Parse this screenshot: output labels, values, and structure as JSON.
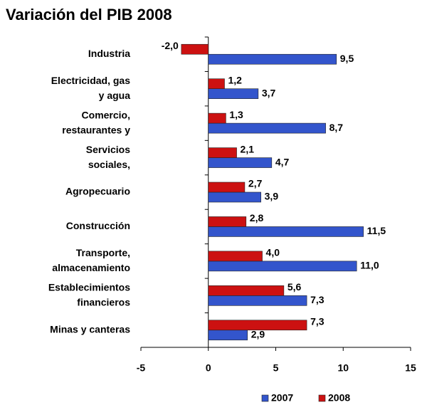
{
  "chart_data": {
    "type": "hbar",
    "title": "Variación del PIB 2008",
    "categories": [
      [
        "Industria"
      ],
      [
        "Electricidad, gas",
        "y agua"
      ],
      [
        "Comercio,",
        "restaurantes y"
      ],
      [
        "Servicios",
        "sociales,"
      ],
      [
        "Agropecuario"
      ],
      [
        "Construcción"
      ],
      [
        "Transporte,",
        "almacenamiento"
      ],
      [
        "Establecimientos",
        "financieros"
      ],
      [
        "Minas y canteras"
      ]
    ],
    "series": [
      {
        "name": "2007",
        "color": "#3355cc",
        "values": [
          9.5,
          3.7,
          8.7,
          4.7,
          3.9,
          11.5,
          11.0,
          7.3,
          2.9
        ],
        "value_labels": [
          "9,5",
          "3,7",
          "8,7",
          "4,7",
          "3,9",
          "11,5",
          "11,0",
          "7,3",
          "2,9"
        ]
      },
      {
        "name": "2008",
        "color": "#cc1111",
        "values": [
          -2.0,
          1.2,
          1.3,
          2.1,
          2.7,
          2.8,
          4.0,
          5.6,
          7.3
        ],
        "value_labels": [
          "-2,0",
          "1,2",
          "1,3",
          "2,1",
          "2,7",
          "2,8",
          "4,0",
          "5,6",
          "7,3"
        ]
      }
    ],
    "xlim": [
      -5,
      15
    ],
    "xticks": [
      -5,
      0,
      5,
      10,
      15
    ],
    "legend": "bottom"
  }
}
